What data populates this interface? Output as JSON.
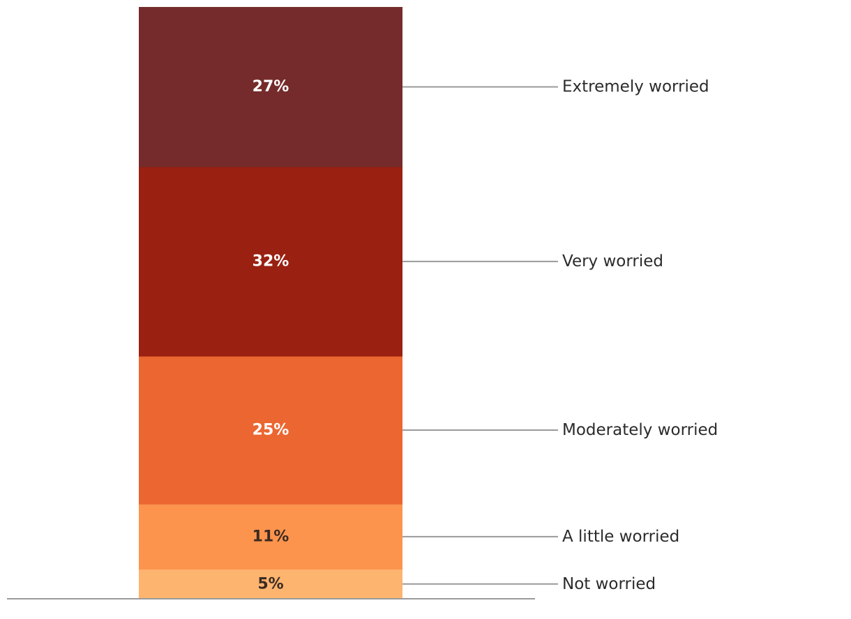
{
  "chart_data": {
    "type": "bar",
    "stacked": true,
    "categories": [
      "Not worried",
      "A little worried",
      "Moderately worried",
      "Very worried",
      "Extremely worried"
    ],
    "values": [
      5,
      11,
      25,
      32,
      27
    ],
    "value_labels": [
      "5%",
      "11%",
      "25%",
      "32%",
      "27%"
    ],
    "colors": [
      "#fdb46f",
      "#fc944e",
      "#ec6631",
      "#9a2011",
      "#752b2b"
    ],
    "label_styles": [
      "dark",
      "dark",
      "light",
      "light",
      "light"
    ],
    "legend": "right",
    "grid": false,
    "title": "",
    "xlabel": "",
    "ylabel": ""
  }
}
